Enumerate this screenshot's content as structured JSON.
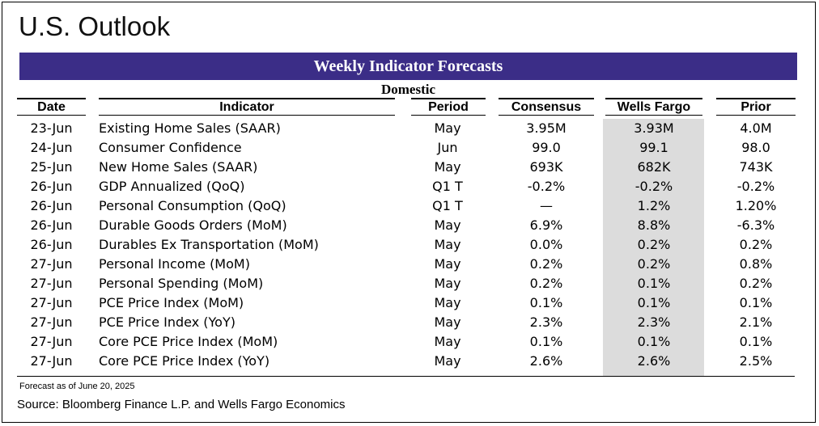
{
  "page": {
    "title": "U.S. Outlook",
    "banner": "Weekly Indicator Forecasts",
    "subheading": "Domestic",
    "footnote": "Forecast as of June 20, 2025",
    "source": "Source: Bloomberg Finance L.P. and Wells Fargo Economics"
  },
  "colors": {
    "banner_bg": "#3b2d87",
    "banner_text": "#ffffff",
    "wells_fargo_column_shade": "#dcdcdc"
  },
  "table": {
    "columns": [
      "Date",
      "Indicator",
      "Period",
      "Consensus",
      "Wells Fargo",
      "Prior"
    ],
    "rows": [
      [
        "23-Jun",
        "Existing Home Sales (SAAR)",
        "May",
        "3.95M",
        "3.93M",
        "4.0M"
      ],
      [
        "24-Jun",
        "Consumer Confidence",
        "Jun",
        "99.0",
        "99.1",
        "98.0"
      ],
      [
        "25-Jun",
        "New Home Sales (SAAR)",
        "May",
        "693K",
        "682K",
        "743K"
      ],
      [
        "26-Jun",
        "GDP Annualized (QoQ)",
        "Q1 T",
        "-0.2%",
        "-0.2%",
        "-0.2%"
      ],
      [
        "26-Jun",
        "Personal Consumption (QoQ)",
        "Q1 T",
        "—",
        "1.2%",
        "1.20%"
      ],
      [
        "26-Jun",
        "Durable Goods Orders (MoM)",
        "May",
        "6.9%",
        "8.8%",
        "-6.3%"
      ],
      [
        "26-Jun",
        "Durables Ex Transportation (MoM)",
        "May",
        "0.0%",
        "0.2%",
        "0.2%"
      ],
      [
        "27-Jun",
        "Personal Income (MoM)",
        "May",
        "0.2%",
        "0.2%",
        "0.8%"
      ],
      [
        "27-Jun",
        "Personal Spending (MoM)",
        "May",
        "0.2%",
        "0.1%",
        "0.2%"
      ],
      [
        "27-Jun",
        "PCE Price Index (MoM)",
        "May",
        "0.1%",
        "0.1%",
        "0.1%"
      ],
      [
        "27-Jun",
        "PCE Price Index (YoY)",
        "May",
        "2.3%",
        "2.3%",
        "2.1%"
      ],
      [
        "27-Jun",
        "Core PCE Price Index (MoM)",
        "May",
        "0.1%",
        "0.1%",
        "0.1%"
      ],
      [
        "27-Jun",
        "Core PCE Price Index (YoY)",
        "May",
        "2.6%",
        "2.6%",
        "2.5%"
      ]
    ]
  }
}
